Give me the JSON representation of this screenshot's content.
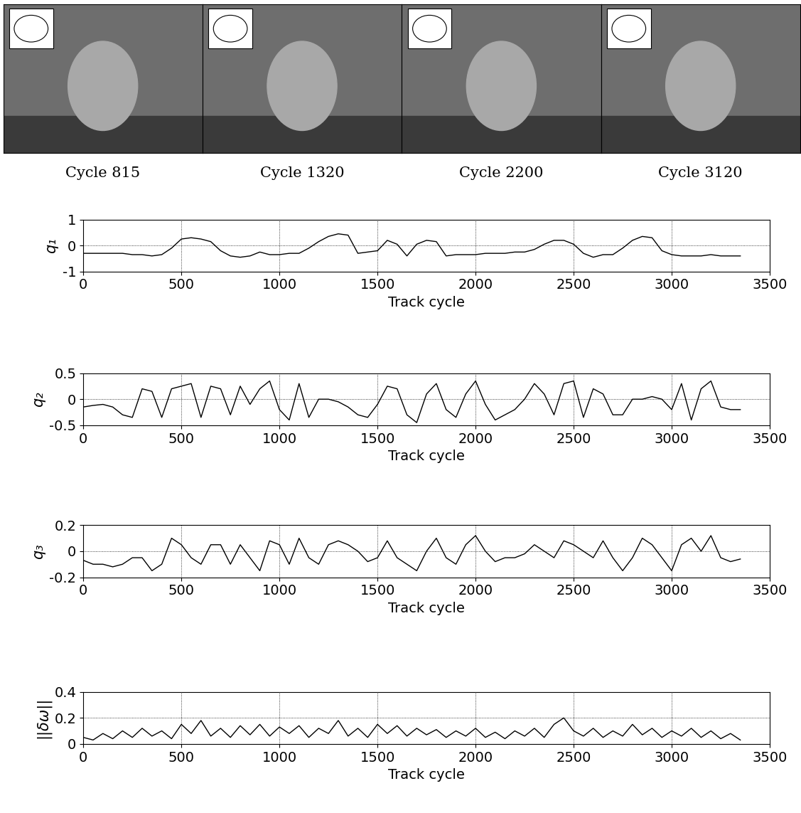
{
  "frames": [
    {
      "caption": "Cycle 815"
    },
    {
      "caption": "Cycle 1320"
    },
    {
      "caption": "Cycle 2200"
    },
    {
      "caption": "Cycle 3120"
    }
  ],
  "chart_data": [
    {
      "type": "line",
      "y_label": "q₁",
      "x_label": "Track cycle",
      "color": "#000000",
      "grid": true,
      "x": [
        0,
        50,
        100,
        150,
        200,
        250,
        300,
        350,
        400,
        450,
        500,
        550,
        600,
        650,
        700,
        750,
        800,
        850,
        900,
        950,
        1000,
        1050,
        1100,
        1150,
        1200,
        1250,
        1300,
        1350,
        1400,
        1450,
        1500,
        1550,
        1600,
        1650,
        1700,
        1750,
        1800,
        1850,
        1900,
        1950,
        2000,
        2050,
        2100,
        2150,
        2200,
        2250,
        2300,
        2350,
        2400,
        2450,
        2500,
        2550,
        2600,
        2650,
        2700,
        2750,
        2800,
        2850,
        2900,
        2950,
        3000,
        3050,
        3100,
        3150,
        3200,
        3250,
        3300,
        3350
      ],
      "values": [
        -0.3,
        -0.3,
        -0.3,
        -0.3,
        -0.3,
        -0.35,
        -0.35,
        -0.4,
        -0.35,
        -0.1,
        0.25,
        0.3,
        0.25,
        0.15,
        -0.2,
        -0.4,
        -0.45,
        -0.4,
        -0.25,
        -0.35,
        -0.35,
        -0.3,
        -0.3,
        -0.1,
        0.15,
        0.35,
        0.45,
        0.4,
        -0.3,
        -0.25,
        -0.2,
        0.2,
        0.05,
        -0.4,
        0.05,
        0.2,
        0.15,
        -0.4,
        -0.35,
        -0.35,
        -0.35,
        -0.3,
        -0.3,
        -0.3,
        -0.25,
        -0.25,
        -0.15,
        0.05,
        0.2,
        0.2,
        0.05,
        -0.3,
        -0.45,
        -0.35,
        -0.35,
        -0.1,
        0.2,
        0.35,
        0.3,
        -0.2,
        -0.35,
        -0.4,
        -0.4,
        -0.4,
        -0.35,
        -0.4,
        -0.4,
        -0.4
      ],
      "xlim": [
        0,
        3500
      ],
      "xticks": [
        0,
        500,
        1000,
        1500,
        2000,
        2500,
        3000,
        3500
      ],
      "ylim": [
        -1,
        1
      ],
      "yticks": [
        -1,
        0,
        1
      ]
    },
    {
      "type": "line",
      "y_label": "q₂",
      "x_label": "Track cycle",
      "color": "#000000",
      "grid": true,
      "x": [
        0,
        50,
        100,
        150,
        200,
        250,
        300,
        350,
        400,
        450,
        500,
        550,
        600,
        650,
        700,
        750,
        800,
        850,
        900,
        950,
        1000,
        1050,
        1100,
        1150,
        1200,
        1250,
        1300,
        1350,
        1400,
        1450,
        1500,
        1550,
        1600,
        1650,
        1700,
        1750,
        1800,
        1850,
        1900,
        1950,
        2000,
        2050,
        2100,
        2150,
        2200,
        2250,
        2300,
        2350,
        2400,
        2450,
        2500,
        2550,
        2600,
        2650,
        2700,
        2750,
        2800,
        2850,
        2900,
        2950,
        3000,
        3050,
        3100,
        3150,
        3200,
        3250,
        3300,
        3350
      ],
      "values": [
        -0.15,
        -0.12,
        -0.1,
        -0.15,
        -0.3,
        -0.35,
        0.2,
        0.15,
        -0.35,
        0.2,
        0.25,
        0.3,
        -0.35,
        0.25,
        0.2,
        -0.3,
        0.25,
        -0.1,
        0.2,
        0.35,
        -0.2,
        -0.4,
        0.3,
        -0.35,
        0.0,
        0.0,
        -0.05,
        -0.15,
        -0.3,
        -0.35,
        -0.1,
        0.25,
        0.2,
        -0.3,
        -0.45,
        0.1,
        0.3,
        -0.2,
        -0.35,
        0.1,
        0.35,
        -0.1,
        -0.4,
        -0.3,
        -0.2,
        0.0,
        0.3,
        0.1,
        -0.3,
        0.3,
        0.35,
        -0.35,
        0.2,
        0.1,
        -0.3,
        -0.3,
        0.0,
        0.0,
        0.05,
        0.0,
        -0.2,
        0.3,
        -0.4,
        0.2,
        0.35,
        -0.15,
        -0.2,
        -0.2
      ],
      "xlim": [
        0,
        3500
      ],
      "xticks": [
        0,
        500,
        1000,
        1500,
        2000,
        2500,
        3000,
        3500
      ],
      "ylim": [
        -0.5,
        0.5
      ],
      "yticks": [
        -0.5,
        0,
        0.5
      ]
    },
    {
      "type": "line",
      "y_label": "q₃",
      "x_label": "Track cycle",
      "color": "#000000",
      "grid": true,
      "x": [
        0,
        50,
        100,
        150,
        200,
        250,
        300,
        350,
        400,
        450,
        500,
        550,
        600,
        650,
        700,
        750,
        800,
        850,
        900,
        950,
        1000,
        1050,
        1100,
        1150,
        1200,
        1250,
        1300,
        1350,
        1400,
        1450,
        1500,
        1550,
        1600,
        1650,
        1700,
        1750,
        1800,
        1850,
        1900,
        1950,
        2000,
        2050,
        2100,
        2150,
        2200,
        2250,
        2300,
        2350,
        2400,
        2450,
        2500,
        2550,
        2600,
        2650,
        2700,
        2750,
        2800,
        2850,
        2900,
        2950,
        3000,
        3050,
        3100,
        3150,
        3200,
        3250,
        3300,
        3350
      ],
      "values": [
        -0.07,
        -0.1,
        -0.1,
        -0.12,
        -0.1,
        -0.05,
        -0.05,
        -0.15,
        -0.1,
        0.1,
        0.05,
        -0.05,
        -0.1,
        0.05,
        0.05,
        -0.1,
        0.05,
        -0.05,
        -0.15,
        0.08,
        0.05,
        -0.1,
        0.1,
        -0.05,
        -0.1,
        0.05,
        0.08,
        0.05,
        0.0,
        -0.08,
        -0.05,
        0.08,
        -0.05,
        -0.1,
        -0.15,
        0.0,
        0.1,
        -0.05,
        -0.1,
        0.05,
        0.12,
        0.0,
        -0.08,
        -0.05,
        -0.05,
        -0.02,
        0.05,
        0.0,
        -0.05,
        0.08,
        0.05,
        0.0,
        -0.05,
        0.08,
        -0.05,
        -0.15,
        -0.05,
        0.1,
        0.05,
        -0.05,
        -0.15,
        0.05,
        0.1,
        0.0,
        0.12,
        -0.05,
        -0.08,
        -0.06
      ],
      "xlim": [
        0,
        3500
      ],
      "xticks": [
        0,
        500,
        1000,
        1500,
        2000,
        2500,
        3000,
        3500
      ],
      "ylim": [
        -0.2,
        0.2
      ],
      "yticks": [
        -0.2,
        0,
        0.2
      ]
    },
    {
      "type": "line",
      "y_label": "||δω||",
      "x_label": "Track cycle",
      "color": "#000000",
      "grid": true,
      "x": [
        0,
        50,
        100,
        150,
        200,
        250,
        300,
        350,
        400,
        450,
        500,
        550,
        600,
        650,
        700,
        750,
        800,
        850,
        900,
        950,
        1000,
        1050,
        1100,
        1150,
        1200,
        1250,
        1300,
        1350,
        1400,
        1450,
        1500,
        1550,
        1600,
        1650,
        1700,
        1750,
        1800,
        1850,
        1900,
        1950,
        2000,
        2050,
        2100,
        2150,
        2200,
        2250,
        2300,
        2350,
        2400,
        2450,
        2500,
        2550,
        2600,
        2650,
        2700,
        2750,
        2800,
        2850,
        2900,
        2950,
        3000,
        3050,
        3100,
        3150,
        3200,
        3250,
        3300,
        3350
      ],
      "values": [
        0.05,
        0.03,
        0.08,
        0.04,
        0.1,
        0.05,
        0.12,
        0.06,
        0.1,
        0.04,
        0.15,
        0.08,
        0.18,
        0.06,
        0.12,
        0.05,
        0.14,
        0.07,
        0.15,
        0.06,
        0.13,
        0.08,
        0.14,
        0.05,
        0.12,
        0.08,
        0.18,
        0.06,
        0.12,
        0.05,
        0.15,
        0.08,
        0.14,
        0.06,
        0.12,
        0.07,
        0.11,
        0.05,
        0.1,
        0.06,
        0.12,
        0.05,
        0.09,
        0.04,
        0.1,
        0.06,
        0.12,
        0.05,
        0.15,
        0.2,
        0.1,
        0.06,
        0.12,
        0.05,
        0.1,
        0.06,
        0.15,
        0.07,
        0.12,
        0.05,
        0.1,
        0.06,
        0.12,
        0.05,
        0.1,
        0.04,
        0.08,
        0.03
      ],
      "xlim": [
        0,
        3500
      ],
      "xticks": [
        0,
        500,
        1000,
        1500,
        2000,
        2500,
        3000,
        3500
      ],
      "ylim": [
        0,
        0.4
      ],
      "yticks": [
        0,
        0.2,
        0.4
      ]
    }
  ]
}
